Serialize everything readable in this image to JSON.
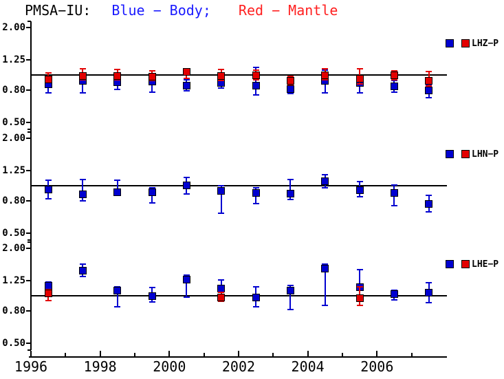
{
  "title": {
    "station": "PMSA−IU:",
    "body_segment": "Blue − Body;",
    "mantle_segment": "Red − Mantle"
  },
  "colors": {
    "body_blue": "#0000d0",
    "mantle_red": "#e30000",
    "title_blue": "#1a1aff",
    "title_red": "#ff2020",
    "axis_black": "#000000",
    "background": "#ffffff"
  },
  "x_axis": {
    "start": 1996,
    "end": 2008,
    "labeled_years": [
      1996,
      1998,
      2000,
      2002,
      2004,
      2006
    ],
    "tick_labels": [
      "1996",
      "1998",
      "2000",
      "2002",
      "2004",
      "2006"
    ],
    "minor_tick_years": [
      1997,
      1999,
      2001,
      2003,
      2005,
      2007
    ]
  },
  "y_axis": {
    "scale": "log",
    "min": 0.45,
    "max": 2.24,
    "tick_values": [
      2.0,
      1.25,
      0.8,
      0.5
    ],
    "tick_labels": [
      "2.00",
      "1.25",
      "0.80",
      "0.50"
    ],
    "reference_value": 1.0
  },
  "chart_data": [
    {
      "type": "scatter",
      "panel_label": "LHZ−P",
      "series": [
        {
          "name": "Body",
          "color_key": "body_blue",
          "x": [
            1996.5,
            1997.5,
            1998.5,
            1999.5,
            2000.5,
            2001.5,
            2002.5,
            2003.5,
            2004.5,
            2005.5,
            2006.5,
            2007.5
          ],
          "y": [
            0.87,
            0.92,
            0.9,
            0.91,
            0.86,
            0.89,
            0.86,
            0.81,
            0.92,
            0.89,
            0.85,
            0.8
          ],
          "err_lo": [
            0.77,
            0.77,
            0.81,
            0.78,
            0.79,
            0.83,
            0.75,
            0.76,
            0.77,
            0.77,
            0.78,
            0.72
          ],
          "err_hi": [
            0.96,
            1.0,
            0.97,
            0.98,
            0.93,
            0.95,
            1.12,
            0.87,
            1.07,
            0.97,
            0.92,
            0.86
          ]
        },
        {
          "name": "Mantle",
          "color_key": "mantle_red",
          "x": [
            1996.5,
            1997.5,
            1998.5,
            1999.5,
            2000.5,
            2001.5,
            2002.5,
            2003.5,
            2004.5,
            2005.5,
            2006.5,
            2007.5
          ],
          "y": [
            0.94,
            0.99,
            0.99,
            0.98,
            1.05,
            0.99,
            1.0,
            0.92,
            1.0,
            0.95,
            1.0,
            0.92
          ],
          "err_lo": [
            0.9,
            0.93,
            0.93,
            0.92,
            0.95,
            0.92,
            0.93,
            0.87,
            0.93,
            0.88,
            0.93,
            0.85
          ],
          "err_hi": [
            1.03,
            1.09,
            1.08,
            1.06,
            1.1,
            1.08,
            1.07,
            0.98,
            1.09,
            1.1,
            1.06,
            1.05
          ]
        }
      ]
    },
    {
      "type": "scatter",
      "panel_label": "LHN−P",
      "series": [
        {
          "name": "Body",
          "color_key": "body_blue",
          "x": [
            1996.5,
            1997.5,
            1998.5,
            1999.5,
            2000.5,
            2001.5,
            2002.5,
            2003.5,
            2004.5,
            2005.5,
            2006.5,
            2007.5
          ],
          "y": [
            0.95,
            0.88,
            0.91,
            0.91,
            1.01,
            0.93,
            0.9,
            0.89,
            1.07,
            0.94,
            0.9,
            0.77
          ],
          "err_lo": [
            0.83,
            0.8,
            0.87,
            0.78,
            0.89,
            0.67,
            0.77,
            0.82,
            0.97,
            0.85,
            0.75,
            0.68
          ],
          "err_hi": [
            1.08,
            1.09,
            1.08,
            0.97,
            1.13,
            1.0,
            0.97,
            1.1,
            1.18,
            1.06,
            1.01,
            0.87
          ]
        }
      ]
    },
    {
      "type": "scatter",
      "panel_label": "LHE−P",
      "series": [
        {
          "name": "Body",
          "color_key": "body_blue",
          "x": [
            1996.5,
            1997.5,
            1998.5,
            1999.5,
            2000.5,
            2001.5,
            2002.5,
            2003.5,
            2004.5,
            2005.5,
            2006.5,
            2007.5
          ],
          "y": [
            1.16,
            1.45,
            1.08,
            1.0,
            1.26,
            1.11,
            0.98,
            1.08,
            1.48,
            1.13,
            1.03,
            1.05
          ],
          "err_lo": [
            1.08,
            1.33,
            0.85,
            0.91,
            0.98,
            0.95,
            0.85,
            0.82,
            0.87,
            0.95,
            0.94,
            0.9
          ],
          "err_hi": [
            1.22,
            1.58,
            1.14,
            1.13,
            1.35,
            1.26,
            1.14,
            1.16,
            1.59,
            1.47,
            1.08,
            1.21
          ]
        },
        {
          "name": "Mantle",
          "color_key": "mantle_red",
          "x": [
            1996.5,
            2001.5,
            2005.5
          ],
          "y": [
            1.04,
            0.98,
            0.97
          ],
          "err_lo": [
            0.93,
            0.92,
            0.87
          ],
          "err_hi": [
            1.1,
            1.05,
            1.14
          ]
        }
      ]
    }
  ]
}
